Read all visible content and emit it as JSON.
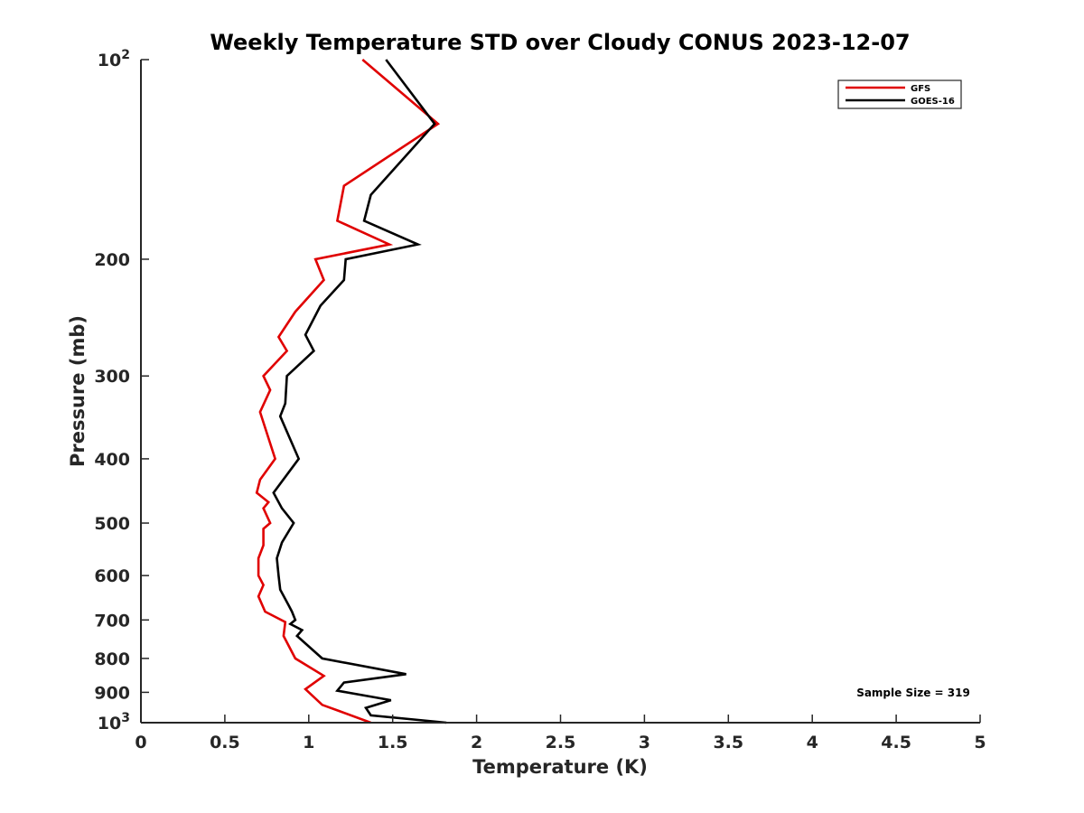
{
  "chart_data": {
    "type": "line",
    "title": "Weekly Temperature STD over Cloudy CONUS 2023-12-07",
    "xlabel": "Temperature (K)",
    "ylabel": "Pressure (mb)",
    "xlim": [
      0,
      5
    ],
    "ylim": [
      100,
      1000
    ],
    "yscale": "log",
    "yreversed": true,
    "grid": false,
    "legend_position": "top-right",
    "x_ticks": [
      0,
      0.5,
      1,
      1.5,
      2,
      2.5,
      3,
      3.5,
      4,
      4.5,
      5
    ],
    "x_tick_labels": [
      "0",
      "0.5",
      "1",
      "1.5",
      "2",
      "2.5",
      "3",
      "3.5",
      "4",
      "4.5",
      "5"
    ],
    "y_ticks": [
      {
        "value": 100,
        "label": "10",
        "sup": "2"
      },
      {
        "value": 200,
        "label": "200",
        "sup": ""
      },
      {
        "value": 300,
        "label": "300",
        "sup": ""
      },
      {
        "value": 400,
        "label": "400",
        "sup": ""
      },
      {
        "value": 500,
        "label": "500",
        "sup": ""
      },
      {
        "value": 600,
        "label": "600",
        "sup": ""
      },
      {
        "value": 700,
        "label": "700",
        "sup": ""
      },
      {
        "value": 800,
        "label": "800",
        "sup": ""
      },
      {
        "value": 900,
        "label": "900",
        "sup": ""
      },
      {
        "value": 1000,
        "label": "10",
        "sup": "3"
      }
    ],
    "series": [
      {
        "name": "GFS",
        "color": "#e00000",
        "points": [
          [
            1.32,
            100
          ],
          [
            1.77,
            125
          ],
          [
            1.21,
            155
          ],
          [
            1.17,
            175
          ],
          [
            1.48,
            190
          ],
          [
            1.04,
            200
          ],
          [
            1.09,
            215
          ],
          [
            0.92,
            240
          ],
          [
            0.82,
            262
          ],
          [
            0.87,
            275
          ],
          [
            0.73,
            300
          ],
          [
            0.77,
            315
          ],
          [
            0.71,
            340
          ],
          [
            0.8,
            400
          ],
          [
            0.71,
            430
          ],
          [
            0.69,
            450
          ],
          [
            0.76,
            465
          ],
          [
            0.73,
            475
          ],
          [
            0.77,
            500
          ],
          [
            0.73,
            510
          ],
          [
            0.73,
            540
          ],
          [
            0.7,
            565
          ],
          [
            0.7,
            600
          ],
          [
            0.73,
            620
          ],
          [
            0.7,
            645
          ],
          [
            0.74,
            680
          ],
          [
            0.86,
            705
          ],
          [
            0.85,
            740
          ],
          [
            0.92,
            800
          ],
          [
            1.09,
            850
          ],
          [
            0.98,
            890
          ],
          [
            1.08,
            940
          ],
          [
            1.18,
            960
          ],
          [
            1.37,
            1000
          ]
        ]
      },
      {
        "name": "GOES-16",
        "color": "#000000",
        "points": [
          [
            1.46,
            100
          ],
          [
            1.75,
            125
          ],
          [
            1.37,
            160
          ],
          [
            1.33,
            175
          ],
          [
            1.65,
            190
          ],
          [
            1.22,
            200
          ],
          [
            1.21,
            215
          ],
          [
            1.07,
            235
          ],
          [
            0.98,
            260
          ],
          [
            1.03,
            275
          ],
          [
            0.87,
            300
          ],
          [
            0.86,
            330
          ],
          [
            0.83,
            345
          ],
          [
            0.94,
            400
          ],
          [
            0.79,
            450
          ],
          [
            0.84,
            475
          ],
          [
            0.91,
            500
          ],
          [
            0.84,
            535
          ],
          [
            0.81,
            565
          ],
          [
            0.82,
            600
          ],
          [
            0.83,
            630
          ],
          [
            0.88,
            665
          ],
          [
            0.9,
            680
          ],
          [
            0.92,
            700
          ],
          [
            0.89,
            710
          ],
          [
            0.96,
            725
          ],
          [
            0.93,
            740
          ],
          [
            1.08,
            800
          ],
          [
            1.58,
            845
          ],
          [
            1.21,
            870
          ],
          [
            1.17,
            895
          ],
          [
            1.49,
            925
          ],
          [
            1.34,
            950
          ],
          [
            1.37,
            975
          ],
          [
            1.82,
            1000
          ]
        ]
      }
    ],
    "legend": [
      {
        "label": "GFS",
        "color": "#e00000"
      },
      {
        "label": "GOES-16",
        "color": "#000000"
      }
    ],
    "annotations": [
      {
        "text": "Sample Size = 319",
        "position": "bottom-right"
      }
    ]
  }
}
